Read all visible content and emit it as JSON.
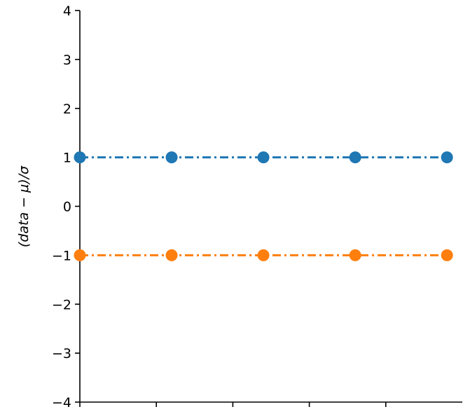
{
  "chart_data": {
    "type": "line",
    "title": "",
    "xlabel": "",
    "ylabel": "(data − μ)/σ",
    "ylim": [
      -4,
      4
    ],
    "yticks": [
      "−4",
      "−3",
      "−2",
      "−1",
      "0",
      "1",
      "2",
      "3",
      "4"
    ],
    "ytick_values": [
      -4,
      -3,
      -2,
      -1,
      0,
      1,
      2,
      3,
      4
    ],
    "xlim": [
      0,
      1
    ],
    "xtick_values": [
      0,
      0.2,
      0.4,
      0.6,
      0.8
    ],
    "x": [
      0,
      0.24,
      0.48,
      0.72,
      0.96
    ],
    "grid": false,
    "series": [
      {
        "values": [
          1,
          1,
          1,
          1,
          1
        ],
        "color": "#1f77b4",
        "linestyle": "dash-dot",
        "marker": "circle"
      },
      {
        "values": [
          -1,
          -1,
          -1,
          -1,
          -1
        ],
        "color": "#ff7f0e",
        "linestyle": "dash-dot",
        "marker": "circle"
      }
    ]
  }
}
